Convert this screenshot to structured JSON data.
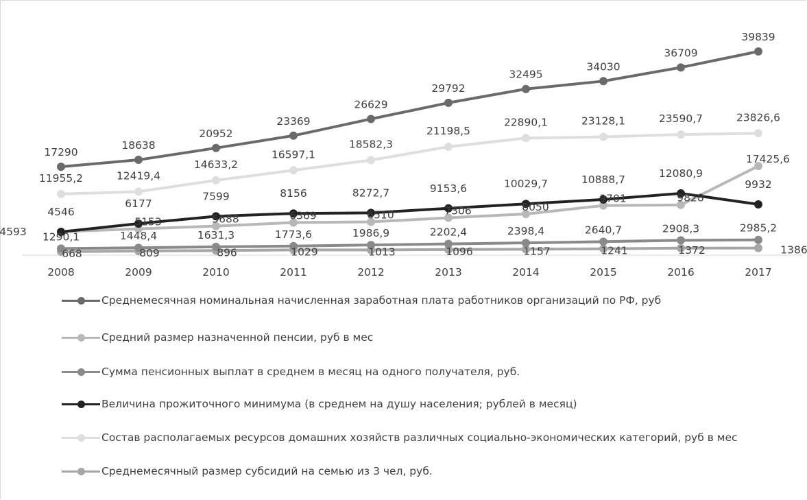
{
  "chart_data": {
    "type": "line",
    "x": [
      "2008",
      "2009",
      "2010",
      "2011",
      "2012",
      "2013",
      "2014",
      "2015",
      "2016",
      "2017"
    ],
    "ylim": [
      0,
      42000
    ],
    "grid": false,
    "legend_position": "bottom",
    "series": [
      {
        "name": "Среднемесячная номинальная начисленная заработная плата работников организаций по РФ, руб",
        "color": "#6a6a6a",
        "values": [
          17290,
          18638,
          20952,
          23369,
          26629,
          29792,
          32495,
          34030,
          36709,
          39839
        ],
        "labels": [
          "17290",
          "18638",
          "20952",
          "23369",
          "26629",
          "29792",
          "32495",
          "34030",
          "36709",
          "39839"
        ]
      },
      {
        "name": "Средний размер назначенной пенсии, руб в мес",
        "color": "#b8b8b8",
        "values": [
          4593,
          5153,
          5688,
          6369,
          6510,
          7306,
          8050,
          9701,
          9828,
          17425.6
        ],
        "labels": [
          "4593",
          "5153",
          "5688",
          "6369",
          "6510",
          "7306",
          "8050",
          "9701",
          "9828",
          "17425,6"
        ]
      },
      {
        "name": "Сумма пенсионных выплат в среднем в месяц на одного получателя, руб.",
        "color": "#8a8a8a",
        "values": [
          1290.1,
          1448.4,
          1631.3,
          1773.6,
          1986.9,
          2202.4,
          2398.4,
          2640.7,
          2908.3,
          2985.2
        ],
        "labels": [
          "1290,1",
          "1448,4",
          "1631,3",
          "1773,6",
          "1986,9",
          "2202,4",
          "2398,4",
          "2640,7",
          "2908,3",
          "2985,2"
        ]
      },
      {
        "name": "Величина прожиточного минимума (в среднем на душу населения; рублей в месяц)",
        "color": "#222222",
        "values": [
          4546,
          6177,
          7599,
          8156,
          8272.7,
          9153.6,
          10029.7,
          10888.7,
          12080.9,
          9932
        ],
        "labels": [
          "4546",
          "6177",
          "7599",
          "8156",
          "8272,7",
          "9153,6",
          "10029,7",
          "10888,7",
          "12080,9",
          "9932"
        ]
      },
      {
        "name": "Состав располагаемых ресурсов домашних хозяйств различных социально-экономических категорий, руб в мес",
        "color": "#dedede",
        "values": [
          11955.2,
          12419.4,
          14633.2,
          16597.1,
          18582.3,
          21198.5,
          22890.1,
          23128.1,
          23590.7,
          23826.6
        ],
        "labels": [
          "11955,2",
          "12419,4",
          "14633,2",
          "16597,1",
          "18582,3",
          "21198,5",
          "22890,1",
          "23128,1",
          "23590,7",
          "23826,6"
        ]
      },
      {
        "name": "Среднемесячный размер субсидий на семью из 3 чел, руб.",
        "color": "#a6a6a6",
        "values": [
          668,
          809,
          896,
          1029,
          1013,
          1096,
          1157,
          1241,
          1372,
          1386
        ],
        "labels": [
          "668",
          "809",
          "896",
          "1029",
          "1013",
          "1096",
          "1157",
          "1241",
          "1372",
          "1386"
        ]
      }
    ]
  }
}
